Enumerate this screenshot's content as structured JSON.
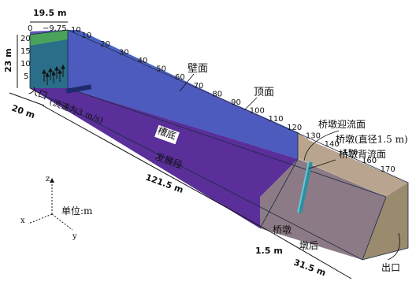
{
  "dimensions": {
    "width": "19.5 m",
    "half_width": "−9.75",
    "zero": "0",
    "height": "23 m",
    "inlet_length": "20 m",
    "development_length": "121.5 m",
    "pier_length": "1.5 m",
    "after_pier_length": "31.5 m"
  },
  "width_ticks": [
    "0",
    "−9.75",
    "10"
  ],
  "height_ticks": [
    "20",
    "15",
    "10",
    "5"
  ],
  "length_ticks": [
    "10",
    "20",
    "30",
    "40",
    "50",
    "60",
    "70",
    "80",
    "90",
    "100",
    "110",
    "120",
    "130",
    "140",
    "150",
    "160",
    "170"
  ],
  "labels": {
    "wall": "壁面",
    "top": "顶面",
    "inlet": "入口",
    "inlet_velocity": "(流速为3 m/s)",
    "channel_bottom": "槽底",
    "development": "发展段",
    "pier_upstream": "桥墩迎流面",
    "pier_diameter": "桥墩(直径1.5 m)",
    "pier_downstream": "桥墩背流面",
    "pier": "桥墩",
    "after_pier": "墩后",
    "outlet": "出口",
    "unit": "单位:m"
  },
  "axes": {
    "x": "x",
    "y": "y",
    "z": "z"
  },
  "colors": {
    "inlet_face": "#2a6e8a",
    "inlet_top": "#4aa35a",
    "top_face": "#4a62c4",
    "side_face": "#3b4fb0",
    "bottom_face": "#5a2f9a",
    "after_top": "#bba58c",
    "after_side": "#8c7b86",
    "outlet_face": "#9a8a6e",
    "pier": "#2e8fa0",
    "pier_face_red": "#c04a3a"
  }
}
